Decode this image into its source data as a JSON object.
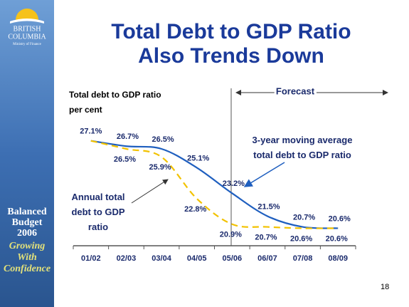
{
  "sidebar": {
    "logo": [
      "BRITISH",
      "COLUMBIA"
    ],
    "ministry": "Ministry of Finance",
    "budget": [
      "Balanced",
      "Budget",
      "2006"
    ],
    "tagline": [
      "Growing",
      "With",
      "Confidence"
    ]
  },
  "page_number": "18",
  "chart_data": {
    "type": "line",
    "title": [
      "Total Debt to GDP Ratio",
      "Also Trends Down"
    ],
    "y_label": [
      "Total debt to GDP ratio",
      "per cent"
    ],
    "annotation": "Forecast",
    "categories": [
      "01/02",
      "02/03",
      "03/04",
      "04/05",
      "05/06",
      "06/07",
      "07/08",
      "08/09"
    ],
    "ylim": [
      19.3,
      28.3
    ],
    "series": [
      {
        "name": "3-year moving average total debt to GDP ratio",
        "color": "#1f5fbf",
        "linestyle": "solid",
        "values": [
          27.1,
          26.7,
          26.5,
          25.1,
          23.2,
          21.5,
          20.7,
          20.6
        ],
        "value_labels": [
          "27.1%",
          "26.7%",
          "26.5%",
          "25.1%",
          "23.2%",
          "21.5%",
          "20.7%",
          "20.6%"
        ]
      },
      {
        "name": "Annual total debt to GDP ratio",
        "color": "#f2c200",
        "linestyle": "dashed",
        "values": [
          27.1,
          26.5,
          25.9,
          22.8,
          20.9,
          20.7,
          20.6,
          20.6
        ],
        "value_labels": [
          null,
          "26.5%",
          "25.9%",
          "22.8%",
          "20.9%",
          "20.7%",
          "20.6%",
          "20.6%"
        ]
      }
    ]
  }
}
